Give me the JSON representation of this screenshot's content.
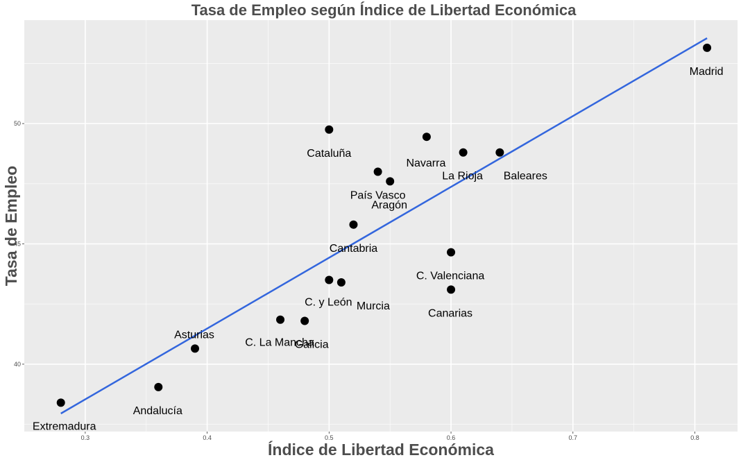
{
  "chart_data": {
    "type": "scatter",
    "title": "Tasa de Empleo según Índice de Libertad Económica",
    "xlabel": "Índice de Libertad Económica",
    "ylabel": "Tasa de Empleo",
    "xlim": [
      0.25,
      0.835
    ],
    "ylim": [
      37.2,
      54.3
    ],
    "x_ticks": [
      0.3,
      0.4,
      0.5,
      0.6,
      0.7,
      0.8
    ],
    "x_tick_labels": [
      "0.3",
      "0.4",
      "0.5",
      "0.6",
      "0.7",
      "0.8"
    ],
    "y_ticks": [
      40,
      45,
      50
    ],
    "y_tick_labels": [
      "40",
      "45",
      "50"
    ],
    "grid": true,
    "legend": "none",
    "colors": {
      "panel": "#ebebeb",
      "grid_major": "#ffffff",
      "point": "#000000",
      "trend_line": "#3366dd"
    },
    "points": [
      {
        "label": "Extremadura",
        "x": 0.28,
        "y": 38.4
      },
      {
        "label": "Andalucía",
        "x": 0.36,
        "y": 39.05
      },
      {
        "label": "Asturias",
        "x": 0.39,
        "y": 40.65
      },
      {
        "label": "C. La Mancha",
        "x": 0.46,
        "y": 41.85
      },
      {
        "label": "Galicia",
        "x": 0.48,
        "y": 41.8
      },
      {
        "label": "C. y León",
        "x": 0.5,
        "y": 43.5
      },
      {
        "label": "Murcia",
        "x": 0.51,
        "y": 43.4
      },
      {
        "label": "Cataluña",
        "x": 0.5,
        "y": 49.75
      },
      {
        "label": "Cantabria",
        "x": 0.52,
        "y": 45.8
      },
      {
        "label": "País Vasco",
        "x": 0.54,
        "y": 48.0
      },
      {
        "label": "Aragón",
        "x": 0.55,
        "y": 47.6
      },
      {
        "label": "Navarra",
        "x": 0.58,
        "y": 49.45
      },
      {
        "label": "C. Valenciana",
        "x": 0.6,
        "y": 44.65
      },
      {
        "label": "Canarias",
        "x": 0.6,
        "y": 43.1
      },
      {
        "label": "La Rioja",
        "x": 0.61,
        "y": 48.8
      },
      {
        "label": "Baleares",
        "x": 0.64,
        "y": 48.8
      },
      {
        "label": "Madrid",
        "x": 0.81,
        "y": 53.15
      }
    ],
    "trend_line": {
      "type": "linear",
      "x": [
        0.28,
        0.81
      ],
      "y": [
        37.95,
        53.55
      ]
    }
  }
}
